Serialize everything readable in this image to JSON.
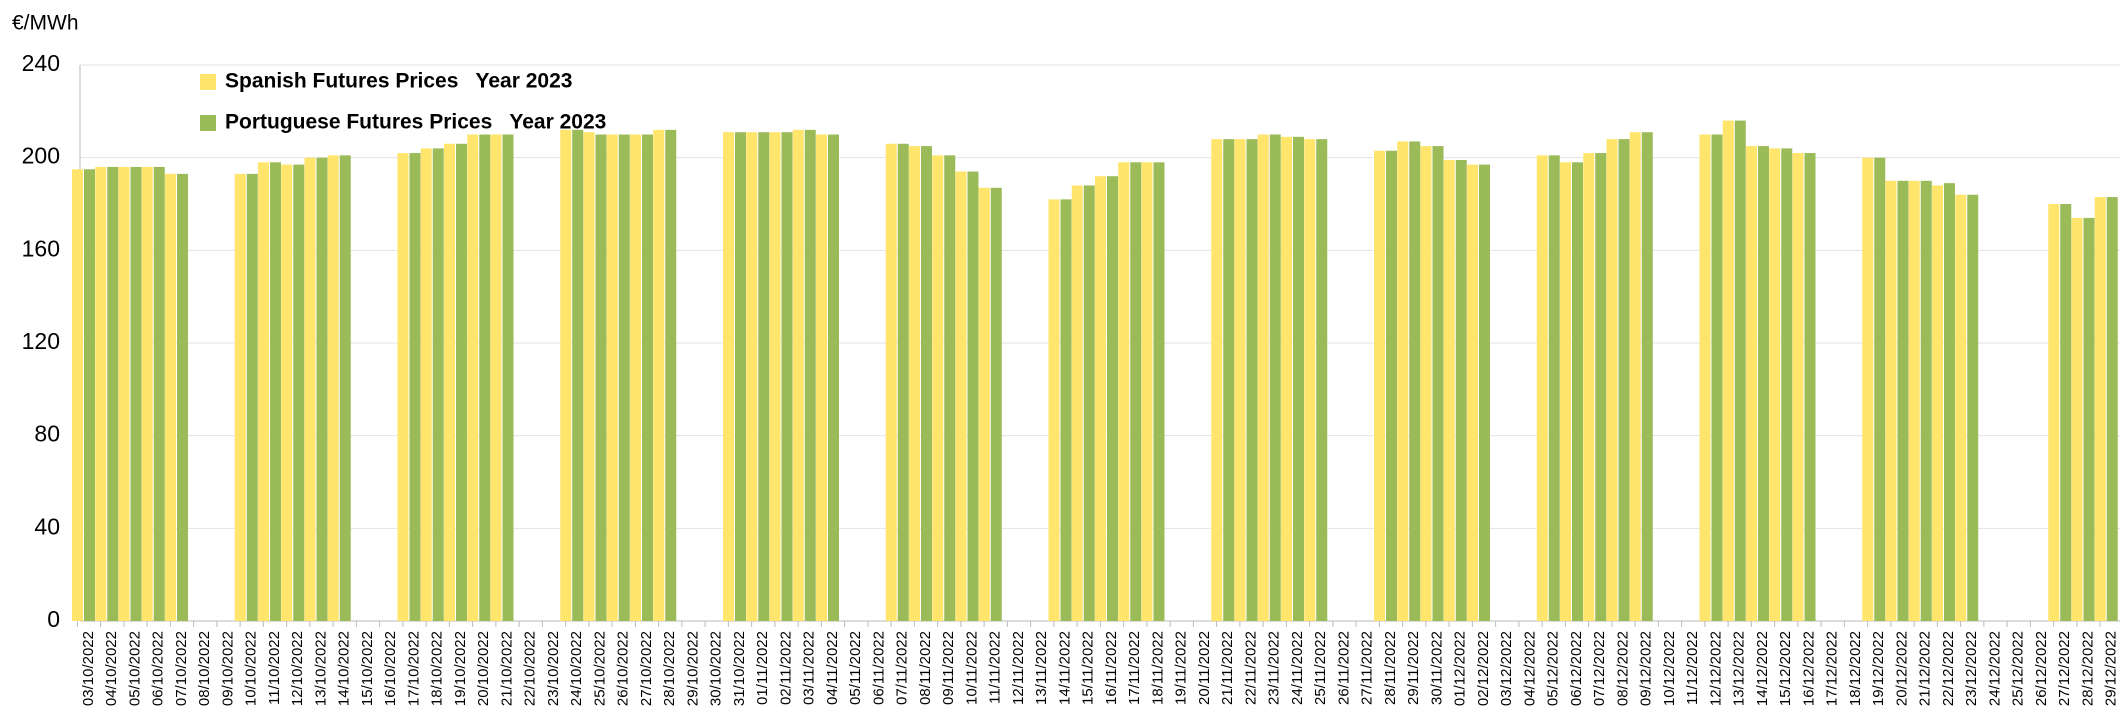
{
  "chart_data": {
    "type": "bar",
    "y_label": "€/MWh",
    "categories": [
      "03/10/2022",
      "04/10/2022",
      "05/10/2022",
      "06/10/2022",
      "07/10/2022",
      "08/10/2022",
      "09/10/2022",
      "10/10/2022",
      "11/10/2022",
      "12/10/2022",
      "13/10/2022",
      "14/10/2022",
      "15/10/2022",
      "16/10/2022",
      "17/10/2022",
      "18/10/2022",
      "19/10/2022",
      "20/10/2022",
      "21/10/2022",
      "22/10/2022",
      "23/10/2022",
      "24/10/2022",
      "25/10/2022",
      "26/10/2022",
      "27/10/2022",
      "28/10/2022",
      "29/10/2022",
      "30/10/2022",
      "31/10/2022",
      "01/11/2022",
      "02/11/2022",
      "03/11/2022",
      "04/11/2022",
      "05/11/2022",
      "06/11/2022",
      "07/11/2022",
      "08/11/2022",
      "09/11/2022",
      "10/11/2022",
      "11/11/2022",
      "12/11/2022",
      "13/11/2022",
      "14/11/2022",
      "15/11/2022",
      "16/11/2022",
      "17/11/2022",
      "18/11/2022",
      "19/11/2022",
      "20/11/2022",
      "21/11/2022",
      "22/11/2022",
      "23/11/2022",
      "24/11/2022",
      "25/11/2022",
      "26/11/2022",
      "27/11/2022",
      "28/11/2022",
      "29/11/2022",
      "30/11/2022",
      "01/12/2022",
      "02/12/2022",
      "03/12/2022",
      "04/12/2022",
      "05/12/2022",
      "06/12/2022",
      "07/12/2022",
      "08/12/2022",
      "09/12/2022",
      "10/12/2022",
      "11/12/2022",
      "12/12/2022",
      "13/12/2022",
      "14/12/2022",
      "15/12/2022",
      "16/12/2022",
      "17/12/2022",
      "18/12/2022",
      "19/12/2022",
      "20/12/2022",
      "21/12/2022",
      "22/12/2022",
      "23/12/2022",
      "24/12/2022",
      "25/12/2022",
      "26/12/2022",
      "27/12/2022",
      "28/12/2022",
      "29/12/2022"
    ],
    "series": [
      {
        "name": "Spanish Futures Prices   Year 2023",
        "color": "#ffe56b",
        "values": [
          195,
          196,
          196,
          196,
          193,
          null,
          null,
          193,
          198,
          197,
          200,
          201,
          null,
          null,
          202,
          204,
          206,
          210,
          210,
          null,
          null,
          212,
          211,
          210,
          210,
          212,
          null,
          null,
          211,
          211,
          211,
          212,
          210,
          null,
          null,
          206,
          205,
          201,
          194,
          187,
          null,
          null,
          182,
          188,
          192,
          198,
          198,
          null,
          null,
          208,
          208,
          210,
          209,
          208,
          null,
          null,
          203,
          207,
          205,
          199,
          197,
          null,
          null,
          201,
          198,
          202,
          208,
          211,
          null,
          null,
          210,
          216,
          205,
          204,
          202,
          null,
          null,
          200,
          190,
          190,
          188,
          184,
          null,
          null,
          null,
          180,
          174,
          183
        ]
      },
      {
        "name": "Portuguese Futures Prices   Year 2023",
        "color": "#9bbb59",
        "values": [
          195,
          196,
          196,
          196,
          193,
          null,
          null,
          193,
          198,
          197,
          200,
          201,
          null,
          null,
          202,
          204,
          206,
          210,
          210,
          null,
          null,
          212,
          210,
          210,
          210,
          212,
          null,
          null,
          211,
          211,
          211,
          212,
          210,
          null,
          null,
          206,
          205,
          201,
          194,
          187,
          null,
          null,
          182,
          188,
          192,
          198,
          198,
          null,
          null,
          208,
          208,
          210,
          209,
          208,
          null,
          null,
          203,
          207,
          205,
          199,
          197,
          null,
          null,
          201,
          198,
          202,
          208,
          211,
          null,
          null,
          210,
          216,
          205,
          204,
          202,
          null,
          null,
          200,
          190,
          190,
          189,
          184,
          null,
          null,
          null,
          180,
          174,
          183
        ]
      }
    ],
    "ylim": [
      0,
      240
    ],
    "yticks": [
      0,
      40,
      80,
      120,
      160,
      200,
      240
    ],
    "grid": true
  }
}
